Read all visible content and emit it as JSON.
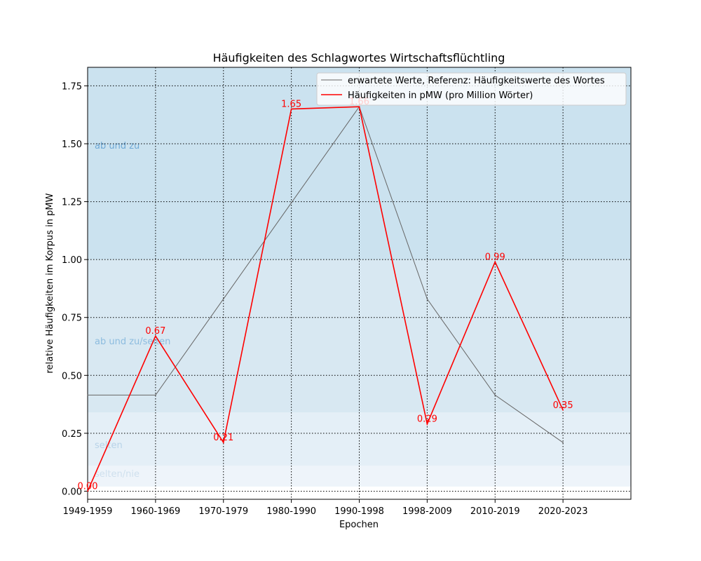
{
  "chart_data": {
    "type": "line",
    "title": "Häufigkeiten des Schlagwortes Wirtschaftsflüchtling",
    "xlabel": "Epochen",
    "ylabel": "relative Häufigkeiten im Korpus in pMW",
    "categories": [
      "1949-1959",
      "1960-1969",
      "1970-1979",
      "1980-1990",
      "1990-1998",
      "1998-2009",
      "2010-2019",
      "2020-2023"
    ],
    "xlim": [
      0,
      8
    ],
    "ylim": [
      -0.035,
      1.83
    ],
    "yticks": [
      0.0,
      0.25,
      0.5,
      0.75,
      1.0,
      1.25,
      1.5,
      1.75
    ],
    "ytick_labels": [
      "0.00",
      "0.25",
      "0.50",
      "0.75",
      "1.00",
      "1.25",
      "1.50",
      "1.75"
    ],
    "grid": true,
    "legend_position": "top-right",
    "bands": [
      {
        "label": "selten/nie",
        "from": 0.02,
        "to": 0.11,
        "color": "#eef4fa"
      },
      {
        "label": "selten",
        "from": 0.11,
        "to": 0.34,
        "color": "#e4eff7"
      },
      {
        "label": "ab und zu/selten",
        "from": 0.34,
        "to": 1.0,
        "color": "#d8e8f2"
      },
      {
        "label": "ab und zu",
        "from": 1.0,
        "to": 1.83,
        "color": "#cbe2ef"
      }
    ],
    "band_label_colors": [
      "#cfe0ee",
      "#b8d3e8",
      "#8dbcdf",
      "#6fa9d6"
    ],
    "series": [
      {
        "name": "erwartete Werte, Referenz: Häufigkeitswerte des Wortes",
        "color": "#666666",
        "values": [
          0.415,
          0.415,
          0.83,
          1.245,
          1.66,
          0.83,
          0.415,
          0.21
        ]
      },
      {
        "name": "Häufigkeiten in pMW (pro Million Wörter)",
        "color": "#ff0000",
        "values": [
          0.0,
          0.67,
          0.21,
          1.65,
          1.66,
          0.29,
          0.99,
          0.35
        ],
        "data_labels": [
          "0.00",
          "0.67",
          "0.21",
          "1.65",
          "1.66",
          "0.29",
          "0.99",
          "0.35"
        ]
      }
    ]
  }
}
